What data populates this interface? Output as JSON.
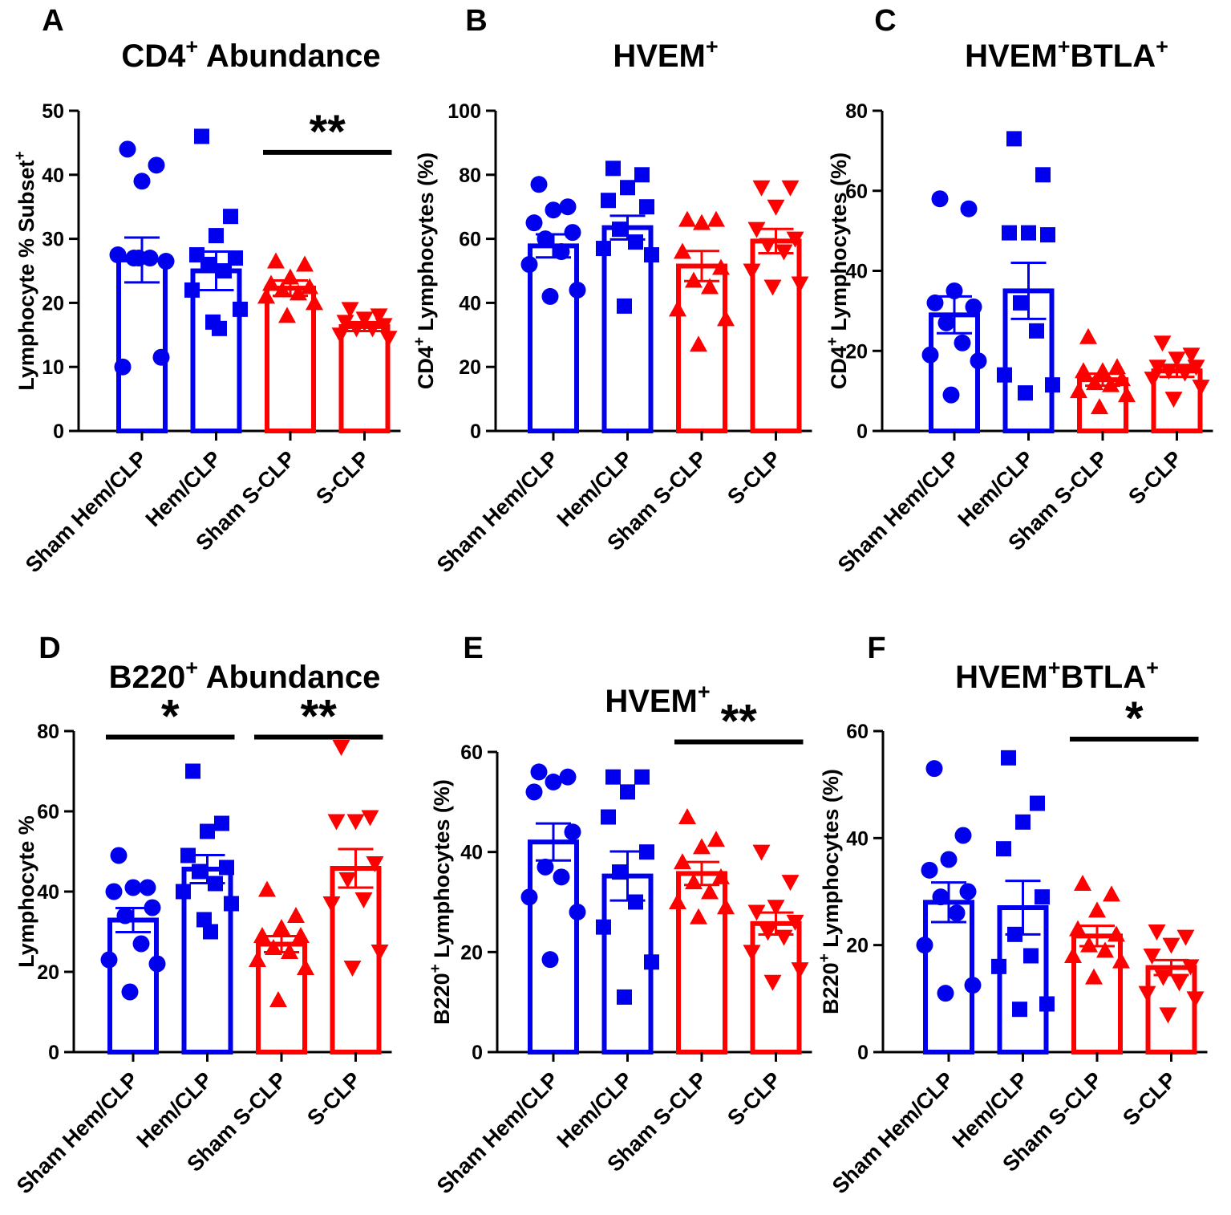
{
  "colors": {
    "blue": "#0000ee",
    "red": "#ff0000",
    "axis": "#000000"
  },
  "chart_data": [
    {
      "panel": "A",
      "type": "bar",
      "title_main": "CD4",
      "title_sup": "+",
      "title_rest": " Abundance",
      "ylabel_parts": [
        "Lymphocyte % Subset",
        "+"
      ],
      "ylim": [
        0,
        50
      ],
      "yticks": [
        0,
        10,
        20,
        30,
        40,
        50
      ],
      "categories": [
        "Sham Hem/CLP",
        "Hem/CLP",
        "Sham S-CLP",
        "S-CLP"
      ],
      "colors": [
        "blue",
        "blue",
        "red",
        "red"
      ],
      "markers": [
        "circle",
        "square",
        "triangle-up",
        "triangle-down"
      ],
      "means": [
        26.7,
        25.0,
        22.3,
        16.3
      ],
      "sems": [
        3.5,
        3.0,
        1.2,
        0.7
      ],
      "points": [
        [
          44,
          41.5,
          39,
          10,
          11.5,
          27,
          27,
          27.5,
          26.5,
          27
        ],
        [
          46,
          33.5,
          30.5,
          27.5,
          27,
          26,
          25,
          22,
          19,
          17,
          16
        ],
        [
          26.5,
          26,
          24,
          23,
          22.5,
          22,
          21.5,
          21,
          20,
          18
        ],
        [
          19,
          18,
          17.5,
          17,
          16.5,
          16,
          16,
          15,
          14.5
        ]
      ],
      "significance": [
        {
          "label": "**",
          "from": 2,
          "to": 3,
          "y": 43.5
        }
      ]
    },
    {
      "panel": "B",
      "type": "bar",
      "title_main": "HVEM",
      "title_sup": "+",
      "title_rest": "",
      "ylabel_parts": [
        "CD4",
        "+",
        " Lymphocytes (%)"
      ],
      "ylim": [
        0,
        100
      ],
      "yticks": [
        0,
        20,
        40,
        60,
        80,
        100
      ],
      "categories": [
        "Sham Hem/CLP",
        "Hem/CLP",
        "Sham S-CLP",
        "S-CLP"
      ],
      "colors": [
        "blue",
        "blue",
        "red",
        "red"
      ],
      "markers": [
        "circle",
        "square",
        "triangle-up",
        "triangle-down"
      ],
      "means": [
        57.8,
        63.5,
        51.5,
        59.3
      ],
      "sems": [
        3.6,
        3.7,
        4.7,
        3.8
      ],
      "points": [
        [
          77,
          70,
          69,
          65,
          62,
          60,
          56,
          52,
          44,
          42
        ],
        [
          82,
          80,
          76,
          72,
          70,
          63,
          59,
          57,
          55,
          39
        ],
        [
          66,
          66,
          65,
          56,
          51,
          47,
          45,
          38,
          35,
          27
        ],
        [
          76,
          76,
          70,
          63,
          60,
          58,
          56,
          50,
          46,
          45
        ]
      ],
      "significance": []
    },
    {
      "panel": "C",
      "type": "bar",
      "title_main": "HVEM",
      "title_sup": "+",
      "title_rest": "BTLA",
      "title_sup2": "+",
      "ylabel_parts": [
        "CD4",
        "+",
        " Lymphocytes (%)"
      ],
      "ylim": [
        0,
        80
      ],
      "yticks": [
        0,
        20,
        40,
        60,
        80
      ],
      "categories": [
        "Sham Hem/CLP",
        "Hem/CLP",
        "Sham S-CLP",
        "S-CLP"
      ],
      "colors": [
        "blue",
        "blue",
        "red",
        "red"
      ],
      "markers": [
        "circle",
        "square",
        "triangle-up",
        "triangle-down"
      ],
      "means": [
        29.0,
        35.0,
        12.8,
        15.0
      ],
      "sems": [
        4.6,
        7.0,
        1.5,
        1.5
      ],
      "points": [
        [
          58,
          55.5,
          35,
          32,
          31,
          27,
          22,
          19,
          17.5,
          9
        ],
        [
          73,
          64,
          49.5,
          49.5,
          49,
          32,
          25,
          14,
          11.5,
          9.5
        ],
        [
          23.5,
          16,
          15,
          15,
          13,
          12,
          11.5,
          10,
          9,
          6
        ],
        [
          22,
          19,
          18,
          16,
          16,
          15,
          14.5,
          13,
          11,
          8
        ]
      ],
      "significance": []
    },
    {
      "panel": "D",
      "type": "bar",
      "title_main": "B220",
      "title_sup": "+",
      "title_rest": " Abundance",
      "ylabel_parts": [
        "Lymphocyte %"
      ],
      "ylim": [
        0,
        80
      ],
      "yticks": [
        0,
        20,
        40,
        60,
        80
      ],
      "categories": [
        "Sham Hem/CLP",
        "Hem/CLP",
        "Sham S-CLP",
        "S-CLP"
      ],
      "colors": [
        "blue",
        "blue",
        "red",
        "red"
      ],
      "markers": [
        "circle",
        "square",
        "triangle-up",
        "triangle-down"
      ],
      "means": [
        32.9,
        45.6,
        26.9,
        45.8
      ],
      "sems": [
        3.0,
        3.5,
        2.0,
        4.8
      ],
      "points": [
        [
          49,
          41,
          41,
          40,
          36,
          34,
          27,
          23,
          22,
          15
        ],
        [
          70,
          57,
          55,
          49,
          46,
          45,
          42,
          40,
          37,
          33,
          30
        ],
        [
          40.5,
          34,
          31,
          29,
          29,
          26,
          25,
          23,
          21,
          13
        ],
        [
          76,
          58.5,
          57.5,
          57.5,
          47,
          43,
          38,
          37,
          25,
          21
        ]
      ],
      "significance": [
        {
          "label": "*",
          "from": 0,
          "to": 1,
          "y": 78.5
        },
        {
          "label": "**",
          "from": 2,
          "to": 3,
          "y": 78.5
        }
      ]
    },
    {
      "panel": "E",
      "type": "bar",
      "title_main": "HVEM",
      "title_sup": "+",
      "title_rest": "",
      "ylabel_parts": [
        "B220",
        "+",
        " Lymphocytes  (%)"
      ],
      "ylim": [
        0,
        60
      ],
      "yticks": [
        0,
        20,
        40,
        60
      ],
      "categories": [
        "Sham Hem/CLP",
        "Hem/CLP",
        "Sham S-CLP",
        "S-CLP"
      ],
      "colors": [
        "blue",
        "blue",
        "red",
        "red"
      ],
      "markers": [
        "circle",
        "square",
        "triangle-up",
        "triangle-down"
      ],
      "means": [
        42.0,
        35.2,
        35.7,
        25.7
      ],
      "sems": [
        3.7,
        4.9,
        2.3,
        2.2
      ],
      "points": [
        [
          56,
          55,
          54,
          52,
          44,
          37,
          35,
          31,
          28,
          18.5
        ],
        [
          55,
          55,
          52,
          47,
          40,
          36,
          30,
          25,
          18,
          11
        ],
        [
          47,
          42.5,
          41,
          38,
          35,
          34,
          32,
          30,
          29,
          27
        ],
        [
          40,
          34,
          29,
          28,
          26,
          24,
          23,
          20,
          16.5,
          14
        ]
      ],
      "significance": [
        {
          "label": "**",
          "from": 2,
          "to": 3,
          "y": 62
        }
      ]
    },
    {
      "panel": "F",
      "type": "bar",
      "title_main": "HVEM",
      "title_sup": "+",
      "title_rest": "BTLA",
      "title_sup2": "+",
      "ylabel_parts": [
        "B220",
        "+",
        " Lymphocytes  (%)"
      ],
      "ylim": [
        0,
        60
      ],
      "yticks": [
        0,
        20,
        40,
        60
      ],
      "categories": [
        "Sham Hem/CLP",
        "Hem/CLP",
        "Sham S-CLP",
        "S-CLP"
      ],
      "colors": [
        "blue",
        "blue",
        "red",
        "red"
      ],
      "markers": [
        "circle",
        "square",
        "triangle-up",
        "triangle-down"
      ],
      "means": [
        28.0,
        27.0,
        21.7,
        15.8
      ],
      "sems": [
        3.7,
        5.0,
        1.9,
        1.4
      ],
      "points": [
        [
          53,
          40.5,
          36,
          34,
          30,
          29,
          26,
          20,
          12.5,
          11
        ],
        [
          55,
          46.5,
          43,
          38,
          29,
          22,
          18,
          16,
          9,
          8
        ],
        [
          31.5,
          29.5,
          26.5,
          23,
          22,
          20,
          19,
          18,
          17,
          14
        ],
        [
          22.5,
          21.5,
          20,
          18,
          16,
          14,
          13,
          11,
          10,
          7
        ]
      ],
      "significance": [
        {
          "label": "*",
          "from": 2,
          "to": 3,
          "y": 58.5
        }
      ]
    }
  ]
}
